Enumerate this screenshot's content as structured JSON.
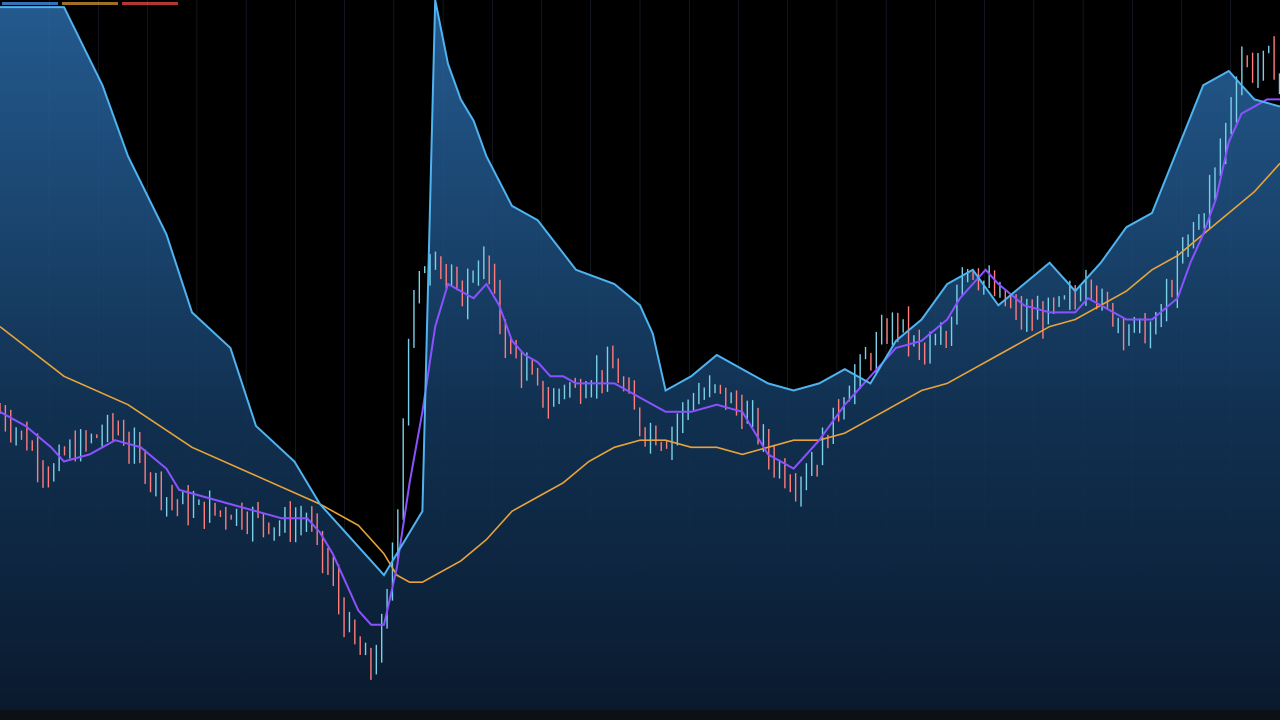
{
  "legend": {
    "items": [
      {
        "label": "",
        "color": "#4aa3ff"
      },
      {
        "label": "",
        "color": "#e0a030"
      },
      {
        "label": "",
        "color": "#ff4d4d"
      }
    ]
  },
  "bottom_text": "",
  "colors": {
    "background": "#000000",
    "band_fill": "#1f5a8f",
    "upper_band": "#4fb3f0",
    "short_ma": "#8a52ff",
    "long_ma": "#e8a43a",
    "candle_up": "#7ad0e8",
    "candle_down": "#ff7d7d",
    "grid": "#1e2633"
  },
  "chart_data": {
    "type": "line",
    "title": "",
    "xlabel": "",
    "ylabel": "",
    "grid": true,
    "x_range": [
      0,
      100
    ],
    "y_range": [
      0,
      100
    ],
    "series": [
      {
        "role": "upper_band",
        "x": [
          0,
          3,
          5,
          8,
          10,
          13,
          15,
          18,
          20,
          23,
          25,
          28,
          30,
          33,
          34,
          35,
          36,
          37,
          38,
          40,
          42,
          45,
          48,
          50,
          51,
          52,
          54,
          56,
          58,
          60,
          62,
          64,
          66,
          68,
          70,
          72,
          74,
          76,
          78,
          80,
          82,
          84,
          86,
          88,
          90,
          92,
          94,
          96,
          98,
          100
        ],
        "values": [
          99,
          99,
          99,
          88,
          78,
          67,
          56,
          51,
          40,
          35,
          29,
          23,
          19,
          28,
          100,
          91,
          86,
          83,
          78,
          71,
          69,
          62,
          60,
          57,
          53,
          45,
          47,
          50,
          48,
          46,
          45,
          46,
          48,
          46,
          52,
          55,
          60,
          62,
          57,
          60,
          63,
          59,
          63,
          68,
          70,
          79,
          88,
          90,
          86,
          85
        ]
      },
      {
        "role": "price",
        "x": [
          0,
          2,
          4,
          5,
          7,
          9,
          11,
          13,
          14,
          16,
          18,
          20,
          22,
          24,
          26,
          27,
          28,
          29,
          30,
          31,
          32,
          33,
          34,
          35,
          36,
          37,
          38,
          39,
          40,
          41,
          42,
          43,
          44,
          45,
          46,
          48,
          50,
          52,
          54,
          56,
          58,
          59,
          60,
          62,
          63,
          64,
          66,
          68,
          70,
          72,
          74,
          75,
          76,
          77,
          78,
          80,
          82,
          84,
          85,
          86,
          88,
          90,
          92,
          93,
          94,
          95,
          96,
          97,
          98,
          99,
          100
        ],
        "values": [
          42,
          38,
          33,
          36,
          38,
          40,
          35,
          30,
          29,
          28,
          28,
          27,
          26,
          27,
          18,
          12,
          8,
          6,
          12,
          27,
          55,
          62,
          65,
          60,
          58,
          62,
          63,
          55,
          50,
          48,
          45,
          43,
          46,
          45,
          47,
          48,
          40,
          38,
          44,
          45,
          42,
          40,
          36,
          32,
          34,
          36,
          45,
          50,
          55,
          50,
          52,
          63,
          62,
          60,
          58,
          55,
          56,
          58,
          62,
          57,
          54,
          53,
          62,
          67,
          70,
          76,
          84,
          92,
          90,
          92,
          89
        ]
      },
      {
        "role": "short_ma",
        "x": [
          0,
          2,
          4,
          5,
          7,
          9,
          11,
          13,
          14,
          16,
          18,
          20,
          22,
          24,
          25,
          26,
          27,
          28,
          29,
          30,
          31,
          32,
          33,
          34,
          35,
          36,
          37,
          38,
          39,
          40,
          41,
          42,
          43,
          44,
          45,
          46,
          48,
          50,
          52,
          54,
          56,
          58,
          59,
          60,
          62,
          63,
          64,
          66,
          68,
          70,
          72,
          74,
          75,
          76,
          77,
          78,
          80,
          82,
          84,
          85,
          86,
          88,
          90,
          92,
          93,
          94,
          95,
          96,
          97,
          98,
          99,
          100
        ],
        "values": [
          42,
          40,
          37,
          35,
          36,
          38,
          37,
          34,
          31,
          30,
          29,
          28,
          27,
          27,
          25,
          22,
          18,
          14,
          12,
          12,
          20,
          32,
          42,
          54,
          60,
          59,
          58,
          60,
          57,
          52,
          50,
          49,
          47,
          47,
          46,
          46,
          46,
          44,
          42,
          42,
          43,
          42,
          39,
          36,
          34,
          36,
          38,
          43,
          47,
          51,
          52,
          55,
          58,
          60,
          62,
          60,
          57,
          56,
          56,
          58,
          57,
          55,
          55,
          58,
          63,
          67,
          72,
          80,
          84,
          85,
          86,
          86
        ]
      },
      {
        "role": "long_ma",
        "x": [
          0,
          5,
          10,
          15,
          20,
          25,
          28,
          30,
          31,
          32,
          33,
          34,
          36,
          38,
          40,
          42,
          44,
          46,
          48,
          50,
          52,
          54,
          56,
          58,
          60,
          62,
          64,
          66,
          68,
          70,
          72,
          74,
          76,
          78,
          80,
          82,
          84,
          86,
          88,
          90,
          92,
          94,
          96,
          98,
          100
        ],
        "values": [
          54,
          47,
          43,
          37,
          33,
          29,
          26,
          22,
          19,
          18,
          18,
          19,
          21,
          24,
          28,
          30,
          32,
          35,
          37,
          38,
          38,
          37,
          37,
          36,
          37,
          38,
          38,
          39,
          41,
          43,
          45,
          46,
          48,
          50,
          52,
          54,
          55,
          57,
          59,
          62,
          64,
          67,
          70,
          73,
          77
        ]
      }
    ]
  }
}
